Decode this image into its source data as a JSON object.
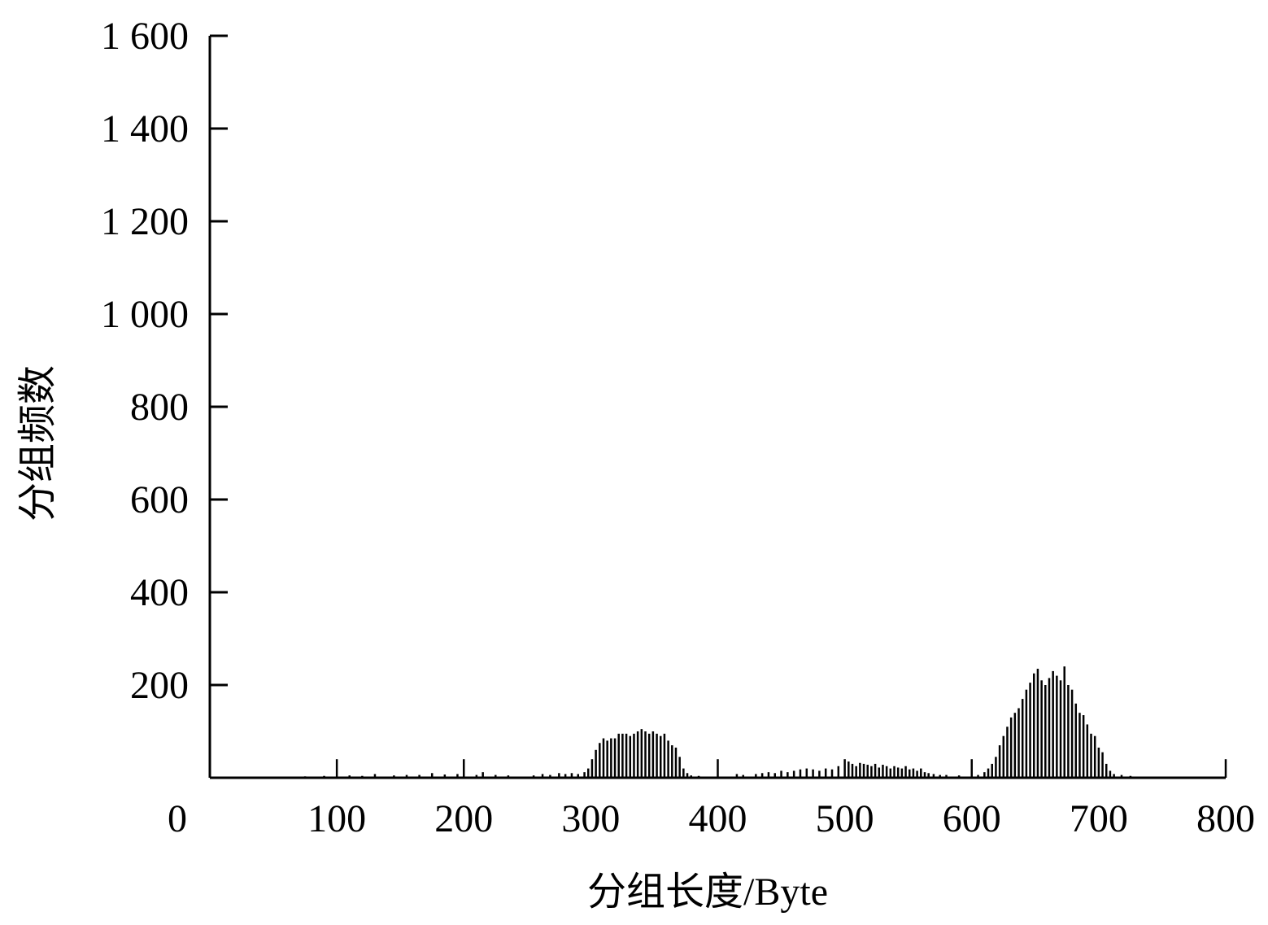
{
  "chart_data": {
    "type": "bar",
    "xlabel": "分组长度/Byte",
    "ylabel": "分组频数",
    "color": "#000000",
    "xlim": [
      0,
      800
    ],
    "xticks": [
      0,
      100,
      200,
      300,
      400,
      500,
      600,
      700,
      800
    ],
    "ylim": [
      0,
      1600
    ],
    "yticks": [
      {
        "value": 200,
        "label": "200"
      },
      {
        "value": 400,
        "label": "400"
      },
      {
        "value": 600,
        "label": "600"
      },
      {
        "value": 800,
        "label": "800"
      },
      {
        "value": 1000,
        "label": "1 000"
      },
      {
        "value": 1200,
        "label": "1 200"
      },
      {
        "value": 1400,
        "label": "1 400"
      },
      {
        "value": 1600,
        "label": "1 600"
      }
    ],
    "x": [
      0,
      75,
      90,
      100,
      110,
      120,
      130,
      145,
      155,
      165,
      175,
      185,
      195,
      200,
      210,
      215,
      225,
      235,
      255,
      262,
      268,
      275,
      280,
      285,
      290,
      295,
      298,
      301,
      304,
      307,
      310,
      313,
      316,
      319,
      322,
      325,
      328,
      331,
      334,
      337,
      340,
      343,
      346,
      349,
      352,
      355,
      358,
      361,
      364,
      367,
      370,
      373,
      376,
      379,
      385,
      400,
      415,
      420,
      430,
      435,
      440,
      445,
      450,
      455,
      460,
      465,
      470,
      475,
      480,
      485,
      490,
      495,
      500,
      503,
      506,
      509,
      512,
      515,
      518,
      521,
      524,
      527,
      530,
      533,
      536,
      539,
      542,
      545,
      548,
      551,
      554,
      557,
      560,
      563,
      566,
      570,
      575,
      580,
      590,
      600,
      605,
      610,
      613,
      616,
      619,
      622,
      625,
      628,
      631,
      634,
      637,
      640,
      643,
      646,
      649,
      652,
      655,
      658,
      661,
      664,
      667,
      670,
      673,
      676,
      679,
      682,
      685,
      688,
      691,
      694,
      697,
      700,
      703,
      706,
      709,
      712,
      718,
      725,
      800
    ],
    "values": [
      40,
      3,
      4,
      40,
      5,
      4,
      8,
      5,
      6,
      6,
      10,
      7,
      8,
      40,
      6,
      12,
      6,
      5,
      5,
      8,
      6,
      10,
      8,
      10,
      8,
      12,
      20,
      40,
      60,
      75,
      85,
      80,
      85,
      85,
      95,
      95,
      95,
      90,
      95,
      100,
      105,
      100,
      95,
      100,
      95,
      90,
      95,
      80,
      70,
      65,
      45,
      20,
      10,
      5,
      4,
      40,
      8,
      6,
      8,
      10,
      12,
      10,
      15,
      12,
      15,
      18,
      20,
      18,
      15,
      20,
      18,
      25,
      40,
      35,
      30,
      25,
      32,
      30,
      28,
      25,
      30,
      22,
      28,
      25,
      20,
      25,
      22,
      20,
      25,
      18,
      20,
      15,
      20,
      12,
      10,
      8,
      6,
      6,
      5,
      40,
      6,
      12,
      20,
      30,
      45,
      70,
      90,
      110,
      130,
      140,
      150,
      170,
      190,
      205,
      225,
      235,
      210,
      200,
      215,
      230,
      220,
      210,
      240,
      200,
      190,
      160,
      140,
      135,
      115,
      95,
      90,
      65,
      55,
      30,
      15,
      8,
      6,
      4,
      40
    ]
  }
}
